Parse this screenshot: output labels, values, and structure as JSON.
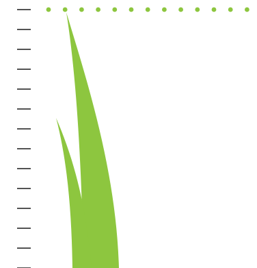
{
  "scene": {
    "background": "#ffffff",
    "tick_color": "#1a1a1a",
    "dot_color": "#8dc63f",
    "leaf_color": "#8dc63f",
    "tick_count": 14,
    "dot_count": 13,
    "leaf_count": 2
  }
}
